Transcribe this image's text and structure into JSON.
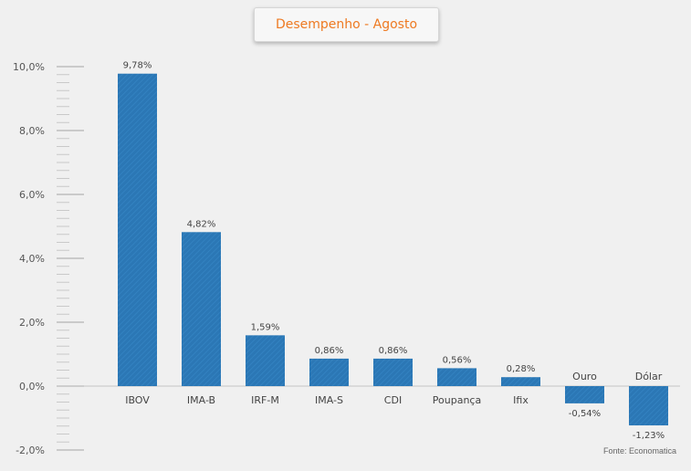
{
  "chart_data": {
    "type": "bar",
    "title": "Desempenho - Agosto",
    "categories": [
      "IBOV",
      "IMA-B",
      "IRF-M",
      "IMA-S",
      "CDI",
      "Poupança",
      "Ifix",
      "Ouro",
      "Dólar"
    ],
    "values": [
      9.78,
      4.82,
      1.59,
      0.86,
      0.86,
      0.56,
      0.28,
      -0.54,
      -1.23
    ],
    "value_labels": [
      "9,78%",
      "4,82%",
      "1,59%",
      "0,86%",
      "0,86%",
      "0,56%",
      "0,28%",
      "-0,54%",
      "-1,23%"
    ],
    "yticks": [
      10,
      8,
      6,
      4,
      2,
      0,
      -2
    ],
    "ytick_labels": [
      "10,0%",
      "8,0%",
      "6,0%",
      "4,0%",
      "2,0%",
      "0,0%",
      "-2,0%"
    ],
    "ylim": [
      -2,
      10
    ],
    "xlabel": "",
    "ylabel": "",
    "grid": false,
    "bar_color": "#2b77b5",
    "title_color": "#ee7a22",
    "source": "Fonte: Economatica"
  }
}
